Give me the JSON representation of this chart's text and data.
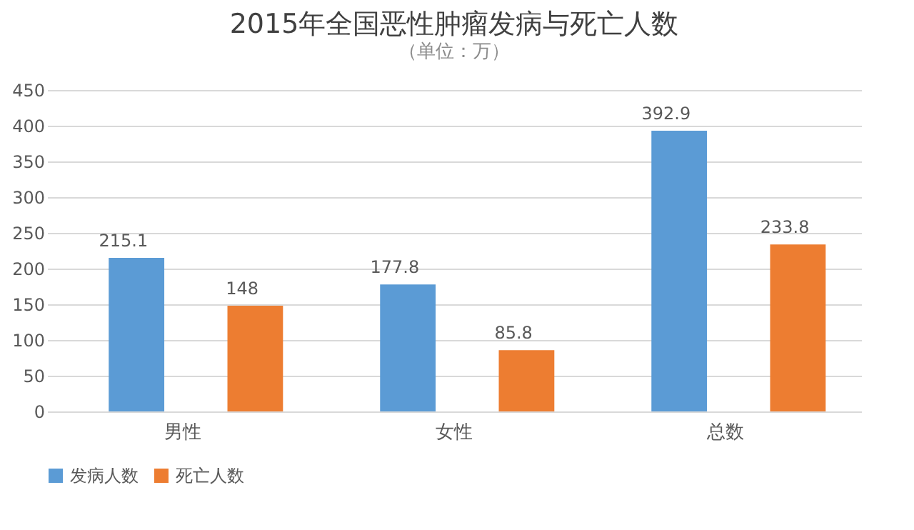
{
  "chart_data": {
    "type": "bar",
    "title": "2015年全国恶性肿瘤发病与死亡人数",
    "subtitle": "（单位：万）",
    "categories": [
      "男性",
      "女性",
      "总数"
    ],
    "series": [
      {
        "name": "发病人数",
        "color": "#5b9bd5",
        "values": [
          215.1,
          177.8,
          392.9
        ]
      },
      {
        "name": "死亡人数",
        "color": "#ed7d31",
        "values": [
          148,
          85.8,
          233.8
        ]
      }
    ],
    "ylim": [
      0,
      450
    ],
    "yticks": [
      0,
      50,
      100,
      150,
      200,
      250,
      300,
      350,
      400,
      450
    ],
    "grid": "y",
    "legend": "bottom",
    "data_labels": true
  }
}
